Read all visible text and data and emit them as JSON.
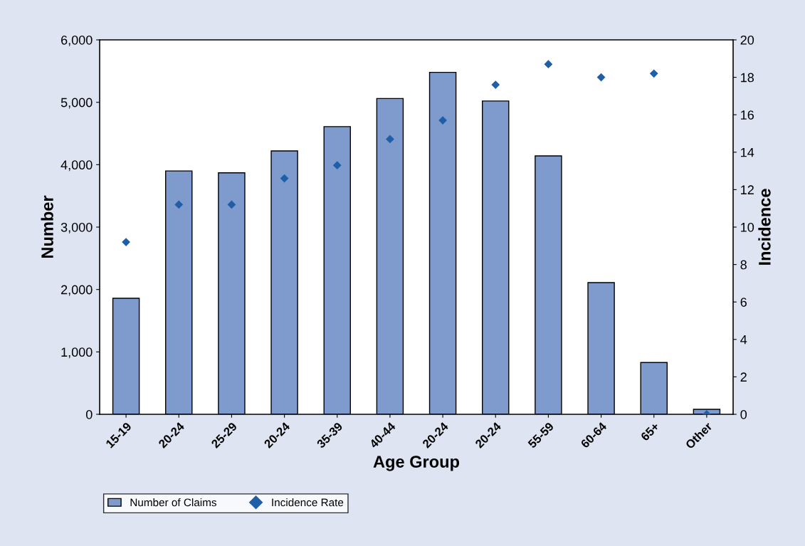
{
  "chart_data": {
    "type": "bar",
    "xlabel": "Age Group",
    "ylabel": "Number",
    "y2label": "Incidence",
    "categories": [
      "15-19",
      "20-24",
      "25-29",
      "20-24",
      "35-39",
      "40-44",
      "20-24",
      "20-24",
      "55-59",
      "60-64",
      "65+",
      "Other"
    ],
    "series": [
      {
        "name": "Number of Claims",
        "color": "#7f9acd",
        "values": [
          1860,
          3900,
          3870,
          4220,
          4610,
          5060,
          5480,
          5020,
          4140,
          2110,
          830,
          80
        ]
      },
      {
        "name": "Incidence Rate",
        "type": "scatter",
        "axis": "y2",
        "marker": "diamond",
        "color": "#1f5fa8",
        "values": [
          9.2,
          11.2,
          11.2,
          12.6,
          13.3,
          14.7,
          15.7,
          17.6,
          18.7,
          18.0,
          18.2,
          0
        ]
      }
    ],
    "ylim": [
      0,
      6000
    ],
    "yticks": [
      0,
      {
        "value": 1000,
        "label": "1,000"
      },
      {
        "value": 2000,
        "label": "2,000"
      },
      {
        "value": 3000,
        "label": "3,000"
      },
      {
        "value": 4000,
        "label": "4,000"
      },
      {
        "value": 5000,
        "label": "5,000"
      },
      {
        "value": 6000,
        "label": "6,000"
      }
    ],
    "y2lim": [
      0,
      20
    ],
    "y2ticks": [
      0,
      2,
      4,
      6,
      8,
      10,
      12,
      14,
      16,
      18,
      20
    ],
    "grid": false,
    "legend": "bottom left"
  }
}
